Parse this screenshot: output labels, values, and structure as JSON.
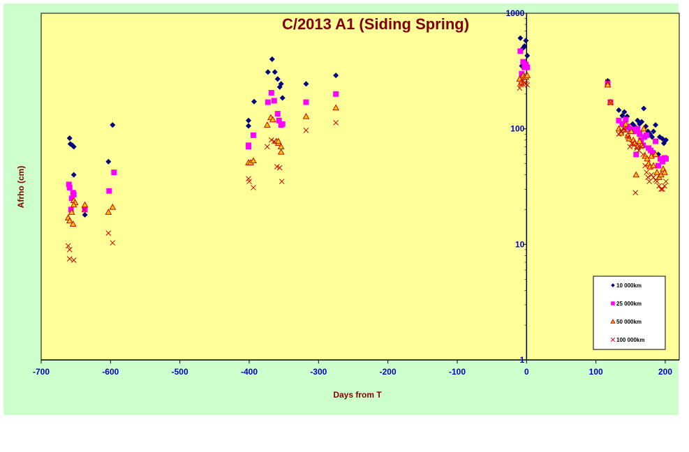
{
  "chart_data": {
    "type": "scatter",
    "title": "C/2013 A1 (Siding Spring)",
    "xlabel": "Days from  T",
    "ylabel": "Afrho (cm)",
    "xlim": [
      -700,
      200
    ],
    "ylim": [
      1,
      1000
    ],
    "yscale": "log",
    "x_ticks": [
      -700,
      -600,
      -500,
      -400,
      -300,
      -200,
      -100,
      0,
      100,
      200
    ],
    "y_ticks": [
      1,
      10,
      100,
      1000
    ],
    "grid": false,
    "legend_position": "bottom-right",
    "background": "#ffff99",
    "series": [
      {
        "name": "10 000km",
        "marker": "diamond",
        "color": "#000080",
        "points": [
          [
            -659,
            83
          ],
          [
            -658,
            74
          ],
          [
            -655,
            72
          ],
          [
            -653,
            70
          ],
          [
            -653,
            40
          ],
          [
            -637,
            18
          ],
          [
            -603,
            52
          ],
          [
            -597,
            108
          ],
          [
            -401,
            118
          ],
          [
            -401,
            106
          ],
          [
            -393,
            172
          ],
          [
            -373,
            310
          ],
          [
            -367,
            400
          ],
          [
            -363,
            310
          ],
          [
            -359,
            270
          ],
          [
            -356,
            230
          ],
          [
            -354,
            245
          ],
          [
            -352,
            185
          ],
          [
            -318,
            245
          ],
          [
            -275,
            290
          ],
          [
            -9,
            610
          ],
          [
            -7,
            350
          ],
          [
            -5,
            500
          ],
          [
            -3,
            520
          ],
          [
            -1,
            580
          ],
          [
            1,
            430
          ],
          [
            117,
            260
          ],
          [
            133,
            145
          ],
          [
            138,
            130
          ],
          [
            141,
            140
          ],
          [
            145,
            128
          ],
          [
            148,
            100
          ],
          [
            153,
            110
          ],
          [
            156,
            105
          ],
          [
            160,
            118
          ],
          [
            163,
            110
          ],
          [
            166,
            115
          ],
          [
            169,
            150
          ],
          [
            172,
            105
          ],
          [
            175,
            95
          ],
          [
            178,
            90
          ],
          [
            181,
            85
          ],
          [
            183,
            95
          ],
          [
            186,
            108
          ],
          [
            190,
            60
          ],
          [
            192,
            85
          ],
          [
            196,
            82
          ],
          [
            198,
            75
          ],
          [
            201,
            80
          ]
        ]
      },
      {
        "name": "25 000km",
        "marker": "square",
        "color": "#ff00ff",
        "points": [
          [
            -660,
            33
          ],
          [
            -659,
            31
          ],
          [
            -656,
            25
          ],
          [
            -654,
            28
          ],
          [
            -653,
            27
          ],
          [
            -657,
            20
          ],
          [
            -637,
            20
          ],
          [
            -602,
            29
          ],
          [
            -595,
            42
          ],
          [
            -401,
            70
          ],
          [
            -401,
            72
          ],
          [
            -394,
            88
          ],
          [
            -373,
            170
          ],
          [
            -368,
            205
          ],
          [
            -364,
            175
          ],
          [
            -359,
            135
          ],
          [
            -357,
            118
          ],
          [
            -354,
            108
          ],
          [
            -352,
            110
          ],
          [
            -318,
            170
          ],
          [
            -275,
            200
          ],
          [
            -9,
            470
          ],
          [
            -7,
            300
          ],
          [
            -5,
            380
          ],
          [
            -3,
            340
          ],
          [
            -1,
            360
          ],
          [
            1,
            340
          ],
          [
            117,
            245
          ],
          [
            121,
            170
          ],
          [
            133,
            118
          ],
          [
            138,
            110
          ],
          [
            143,
            120
          ],
          [
            146,
            105
          ],
          [
            150,
            100
          ],
          [
            153,
            98
          ],
          [
            155,
            95
          ],
          [
            158,
            60
          ],
          [
            160,
            100
          ],
          [
            163,
            90
          ],
          [
            165,
            80
          ],
          [
            168,
            72
          ],
          [
            170,
            85
          ],
          [
            173,
            88
          ],
          [
            176,
            68
          ],
          [
            179,
            65
          ],
          [
            182,
            62
          ],
          [
            186,
            78
          ],
          [
            190,
            48
          ],
          [
            193,
            55
          ],
          [
            196,
            52
          ],
          [
            199,
            56
          ],
          [
            201,
            55
          ]
        ]
      },
      {
        "name": "50 000km",
        "marker": "triangle",
        "color": "#cc0000",
        "points": [
          [
            -661,
            17
          ],
          [
            -659,
            16
          ],
          [
            -656,
            19
          ],
          [
            -654,
            15
          ],
          [
            -653,
            24
          ],
          [
            -651,
            23
          ],
          [
            -653,
            22
          ],
          [
            -637,
            22
          ],
          [
            -603,
            19
          ],
          [
            -597,
            21
          ],
          [
            -401,
            51
          ],
          [
            -398,
            51
          ],
          [
            -394,
            53
          ],
          [
            -374,
            108
          ],
          [
            -369,
            125
          ],
          [
            -366,
            120
          ],
          [
            -361,
            78
          ],
          [
            -358,
            75
          ],
          [
            -354,
            70
          ],
          [
            -354,
            63
          ],
          [
            -358,
            78
          ],
          [
            -318,
            128
          ],
          [
            -275,
            152
          ],
          [
            -10,
            270
          ],
          [
            -8,
            250
          ],
          [
            -5,
            290
          ],
          [
            -3,
            280
          ],
          [
            -1,
            280
          ],
          [
            1,
            290
          ],
          [
            117,
            240
          ],
          [
            121,
            170
          ],
          [
            133,
            100
          ],
          [
            136,
            92
          ],
          [
            140,
            98
          ],
          [
            143,
            110
          ],
          [
            146,
            88
          ],
          [
            148,
            82
          ],
          [
            151,
            95
          ],
          [
            154,
            80
          ],
          [
            156,
            75
          ],
          [
            158,
            40
          ],
          [
            160,
            70
          ],
          [
            163,
            78
          ],
          [
            166,
            72
          ],
          [
            169,
            100
          ],
          [
            171,
            58
          ],
          [
            174,
            55
          ],
          [
            176,
            50
          ],
          [
            178,
            47
          ],
          [
            180,
            58
          ],
          [
            183,
            48
          ],
          [
            186,
            60
          ],
          [
            188,
            42
          ],
          [
            191,
            38
          ],
          [
            194,
            40
          ],
          [
            197,
            45
          ],
          [
            199,
            42
          ]
        ]
      },
      {
        "name": "100 000km",
        "marker": "x",
        "color": "#cc0000",
        "points": [
          [
            -661,
            9.7
          ],
          [
            -659,
            9.0
          ],
          [
            -659,
            7.5
          ],
          [
            -653,
            7.3
          ],
          [
            -638,
            20
          ],
          [
            -603,
            12.5
          ],
          [
            -597,
            10.3
          ],
          [
            -401,
            37
          ],
          [
            -400,
            35
          ],
          [
            -394,
            31
          ],
          [
            -374,
            70
          ],
          [
            -368,
            80
          ],
          [
            -364,
            78
          ],
          [
            -360,
            47
          ],
          [
            -356,
            46
          ],
          [
            -353,
            35
          ],
          [
            -318,
            97
          ],
          [
            -275,
            113
          ],
          [
            -10,
            225
          ],
          [
            -8,
            240
          ],
          [
            -5,
            260
          ],
          [
            -3,
            250
          ],
          [
            -1,
            245
          ],
          [
            1,
            240
          ],
          [
            117,
            255
          ],
          [
            121,
            168
          ],
          [
            133,
            90
          ],
          [
            137,
            95
          ],
          [
            140,
            100
          ],
          [
            143,
            98
          ],
          [
            146,
            85
          ],
          [
            149,
            70
          ],
          [
            152,
            75
          ],
          [
            155,
            72
          ],
          [
            157,
            28
          ],
          [
            159,
            68
          ],
          [
            162,
            65
          ],
          [
            165,
            70
          ],
          [
            168,
            60
          ],
          [
            171,
            48
          ],
          [
            173,
            42
          ],
          [
            175,
            38
          ],
          [
            177,
            35
          ],
          [
            180,
            40
          ],
          [
            183,
            38
          ],
          [
            186,
            36
          ],
          [
            188,
            35
          ],
          [
            191,
            32
          ],
          [
            194,
            30
          ],
          [
            196,
            30
          ],
          [
            199,
            32
          ],
          [
            201,
            35
          ]
        ]
      }
    ]
  }
}
